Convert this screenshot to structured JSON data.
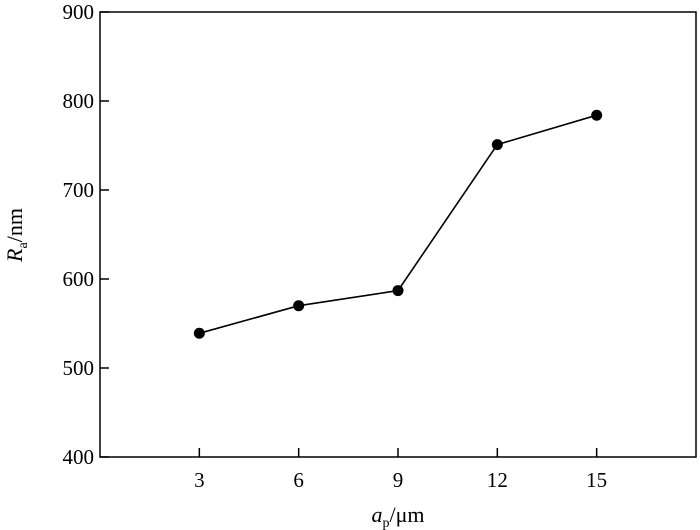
{
  "chart_data": {
    "type": "line",
    "x": [
      3,
      6,
      9,
      12,
      15
    ],
    "series": [
      {
        "values": [
          539,
          570,
          587,
          751,
          784
        ]
      }
    ],
    "xlim": [
      0,
      18
    ],
    "ylim": [
      400,
      900
    ],
    "xticks": [
      3,
      6,
      9,
      12,
      15
    ],
    "yticks": [
      400,
      500,
      600,
      700,
      800,
      900
    ],
    "xlabel": {
      "main": "a",
      "sub": "p",
      "unit": "/μm"
    },
    "ylabel": {
      "main": "R",
      "sub": "a",
      "unit": "/nm"
    },
    "grid": false,
    "legend": "none",
    "line_color": "#000000",
    "marker_color": "#000000"
  }
}
